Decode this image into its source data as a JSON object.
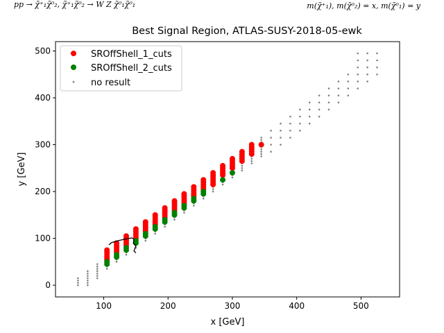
{
  "header": {
    "process_text": "pp → χ̃⁺₁χ̃⁰₂, χ̃⁺₁χ̃⁰₂ → W Z χ̃⁰₁χ̃⁰₁",
    "mass_text": "m(χ̃⁺₁), m(χ̃⁰₂) = x, m(χ̃⁰₁) = y"
  },
  "chart_data": {
    "type": "scatter",
    "title": "Best Signal Region, ATLAS-SUSY-2018-05-ewk",
    "xlabel": "x [GeV]",
    "ylabel": "y [GeV]",
    "xlim": [
      25,
      560
    ],
    "ylim": [
      -25,
      520
    ],
    "xticks": [
      100,
      200,
      300,
      400,
      500
    ],
    "yticks": [
      0,
      100,
      200,
      300,
      400,
      500
    ],
    "grid": false,
    "legend_position": "top-left",
    "colors": {
      "sr1": "#ff0000",
      "sr2": "#008000",
      "none": "#808080",
      "contour": "#000000"
    },
    "series": [
      {
        "name": "SROffShell_1_cuts",
        "color": "#ff0000",
        "points": [
          [
            105,
            55
          ],
          [
            105,
            60
          ],
          [
            105,
            65
          ],
          [
            105,
            70
          ],
          [
            105,
            75
          ],
          [
            120,
            70
          ],
          [
            120,
            75
          ],
          [
            120,
            80
          ],
          [
            120,
            85
          ],
          [
            120,
            90
          ],
          [
            135,
            85
          ],
          [
            135,
            90
          ],
          [
            135,
            95
          ],
          [
            135,
            100
          ],
          [
            135,
            105
          ],
          [
            150,
            100
          ],
          [
            150,
            105
          ],
          [
            150,
            110
          ],
          [
            150,
            115
          ],
          [
            150,
            120
          ],
          [
            165,
            115
          ],
          [
            165,
            120
          ],
          [
            165,
            125
          ],
          [
            165,
            130
          ],
          [
            165,
            135
          ],
          [
            180,
            130
          ],
          [
            180,
            135
          ],
          [
            180,
            140
          ],
          [
            180,
            145
          ],
          [
            180,
            150
          ],
          [
            195,
            145
          ],
          [
            195,
            150
          ],
          [
            195,
            155
          ],
          [
            195,
            160
          ],
          [
            195,
            165
          ],
          [
            210,
            160
          ],
          [
            210,
            165
          ],
          [
            210,
            170
          ],
          [
            210,
            175
          ],
          [
            210,
            180
          ],
          [
            225,
            175
          ],
          [
            225,
            180
          ],
          [
            225,
            185
          ],
          [
            225,
            190
          ],
          [
            225,
            195
          ],
          [
            240,
            190
          ],
          [
            240,
            195
          ],
          [
            240,
            200
          ],
          [
            240,
            205
          ],
          [
            240,
            210
          ],
          [
            255,
            205
          ],
          [
            255,
            210
          ],
          [
            255,
            215
          ],
          [
            255,
            220
          ],
          [
            255,
            225
          ],
          [
            270,
            215
          ],
          [
            270,
            220
          ],
          [
            270,
            225
          ],
          [
            270,
            230
          ],
          [
            270,
            235
          ],
          [
            270,
            240
          ],
          [
            285,
            235
          ],
          [
            285,
            240
          ],
          [
            285,
            245
          ],
          [
            285,
            250
          ],
          [
            285,
            255
          ],
          [
            300,
            250
          ],
          [
            300,
            255
          ],
          [
            300,
            260
          ],
          [
            300,
            265
          ],
          [
            300,
            270
          ],
          [
            315,
            265
          ],
          [
            315,
            270
          ],
          [
            315,
            275
          ],
          [
            315,
            280
          ],
          [
            315,
            285
          ],
          [
            330,
            280
          ],
          [
            330,
            285
          ],
          [
            330,
            290
          ],
          [
            330,
            295
          ],
          [
            330,
            300
          ],
          [
            345,
            300
          ]
        ]
      },
      {
        "name": "SROffShell_2_cuts",
        "color": "#008000",
        "points": [
          [
            105,
            45
          ],
          [
            105,
            50
          ],
          [
            120,
            60
          ],
          [
            120,
            65
          ],
          [
            135,
            75
          ],
          [
            135,
            80
          ],
          [
            150,
            90
          ],
          [
            150,
            95
          ],
          [
            165,
            105
          ],
          [
            165,
            110
          ],
          [
            180,
            120
          ],
          [
            180,
            125
          ],
          [
            195,
            135
          ],
          [
            195,
            140
          ],
          [
            210,
            150
          ],
          [
            210,
            155
          ],
          [
            225,
            165
          ],
          [
            225,
            170
          ],
          [
            240,
            180
          ],
          [
            240,
            185
          ],
          [
            255,
            195
          ],
          [
            255,
            200
          ],
          [
            285,
            225
          ],
          [
            300,
            240
          ]
        ]
      },
      {
        "name": "no result",
        "color": "#808080",
        "points": "generated"
      }
    ],
    "contour": {
      "name": "exclusion contour",
      "color": "#000000"
    }
  }
}
